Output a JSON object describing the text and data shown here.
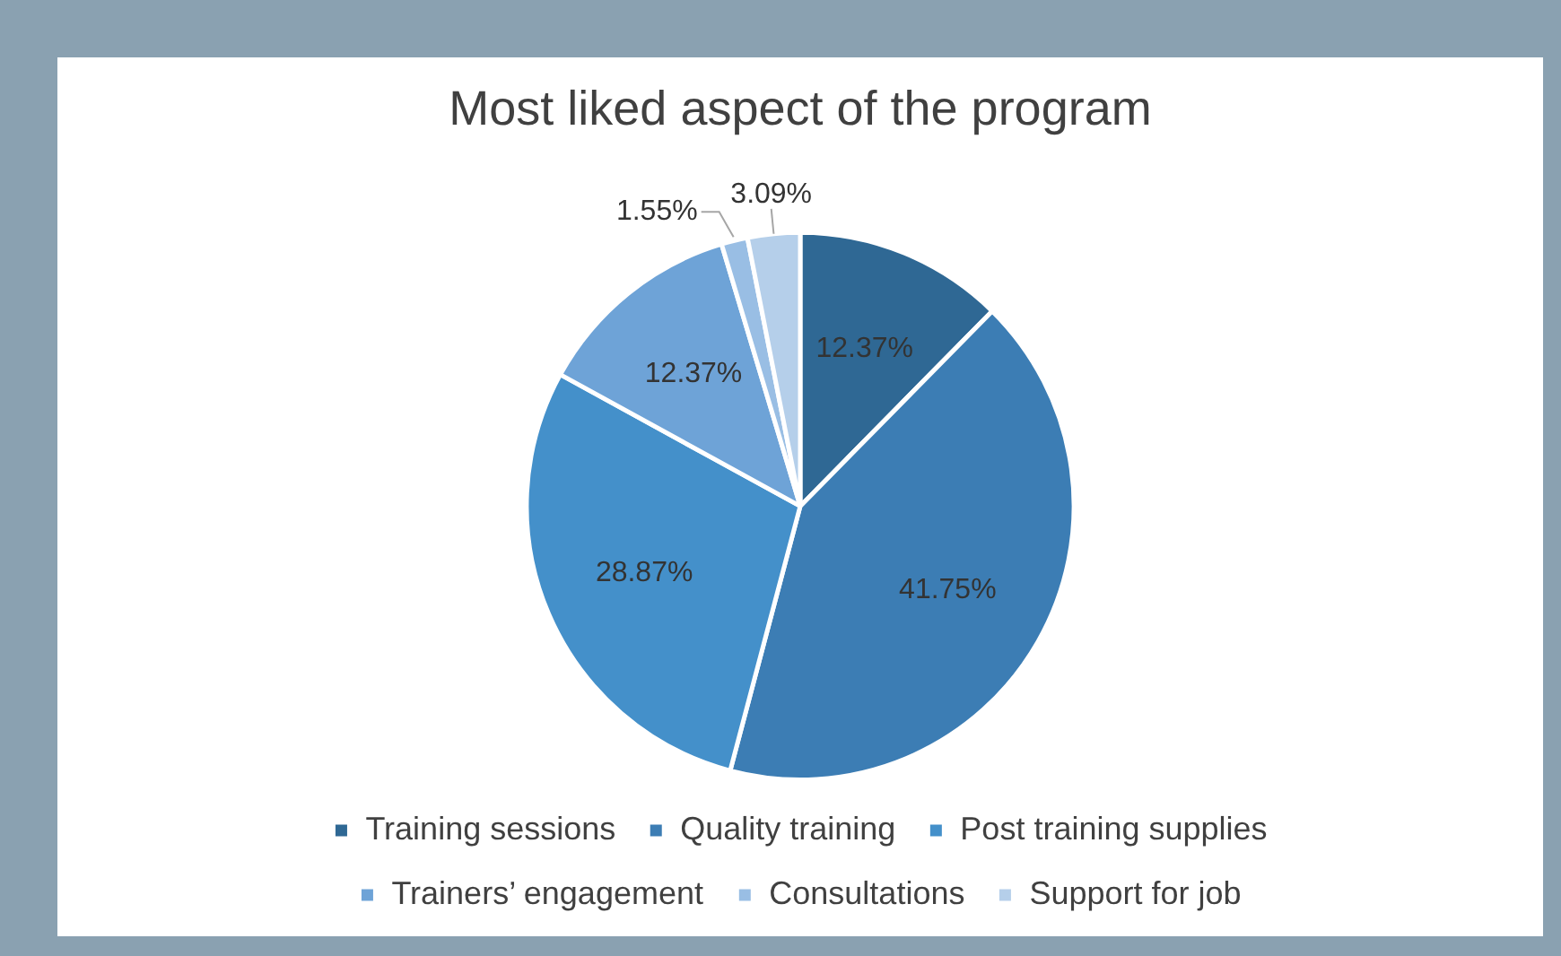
{
  "chart_data": {
    "type": "pie",
    "title": "Most liked aspect of the program",
    "categories": [
      "Training sessions",
      "Quality training",
      "Post training supplies",
      "Trainers’ engagement",
      "Consultations",
      "Support for job"
    ],
    "values": [
      12.37,
      41.75,
      28.87,
      12.37,
      1.55,
      3.09
    ],
    "value_labels": [
      "12.37%",
      "41.75%",
      "28.87%",
      "12.37%",
      "1.55%",
      "3.09%"
    ],
    "colors": [
      "#2f6894",
      "#3c7db4",
      "#4490ca",
      "#6ea3d7",
      "#99bee4",
      "#b5cfea"
    ],
    "legend": "bottom"
  }
}
